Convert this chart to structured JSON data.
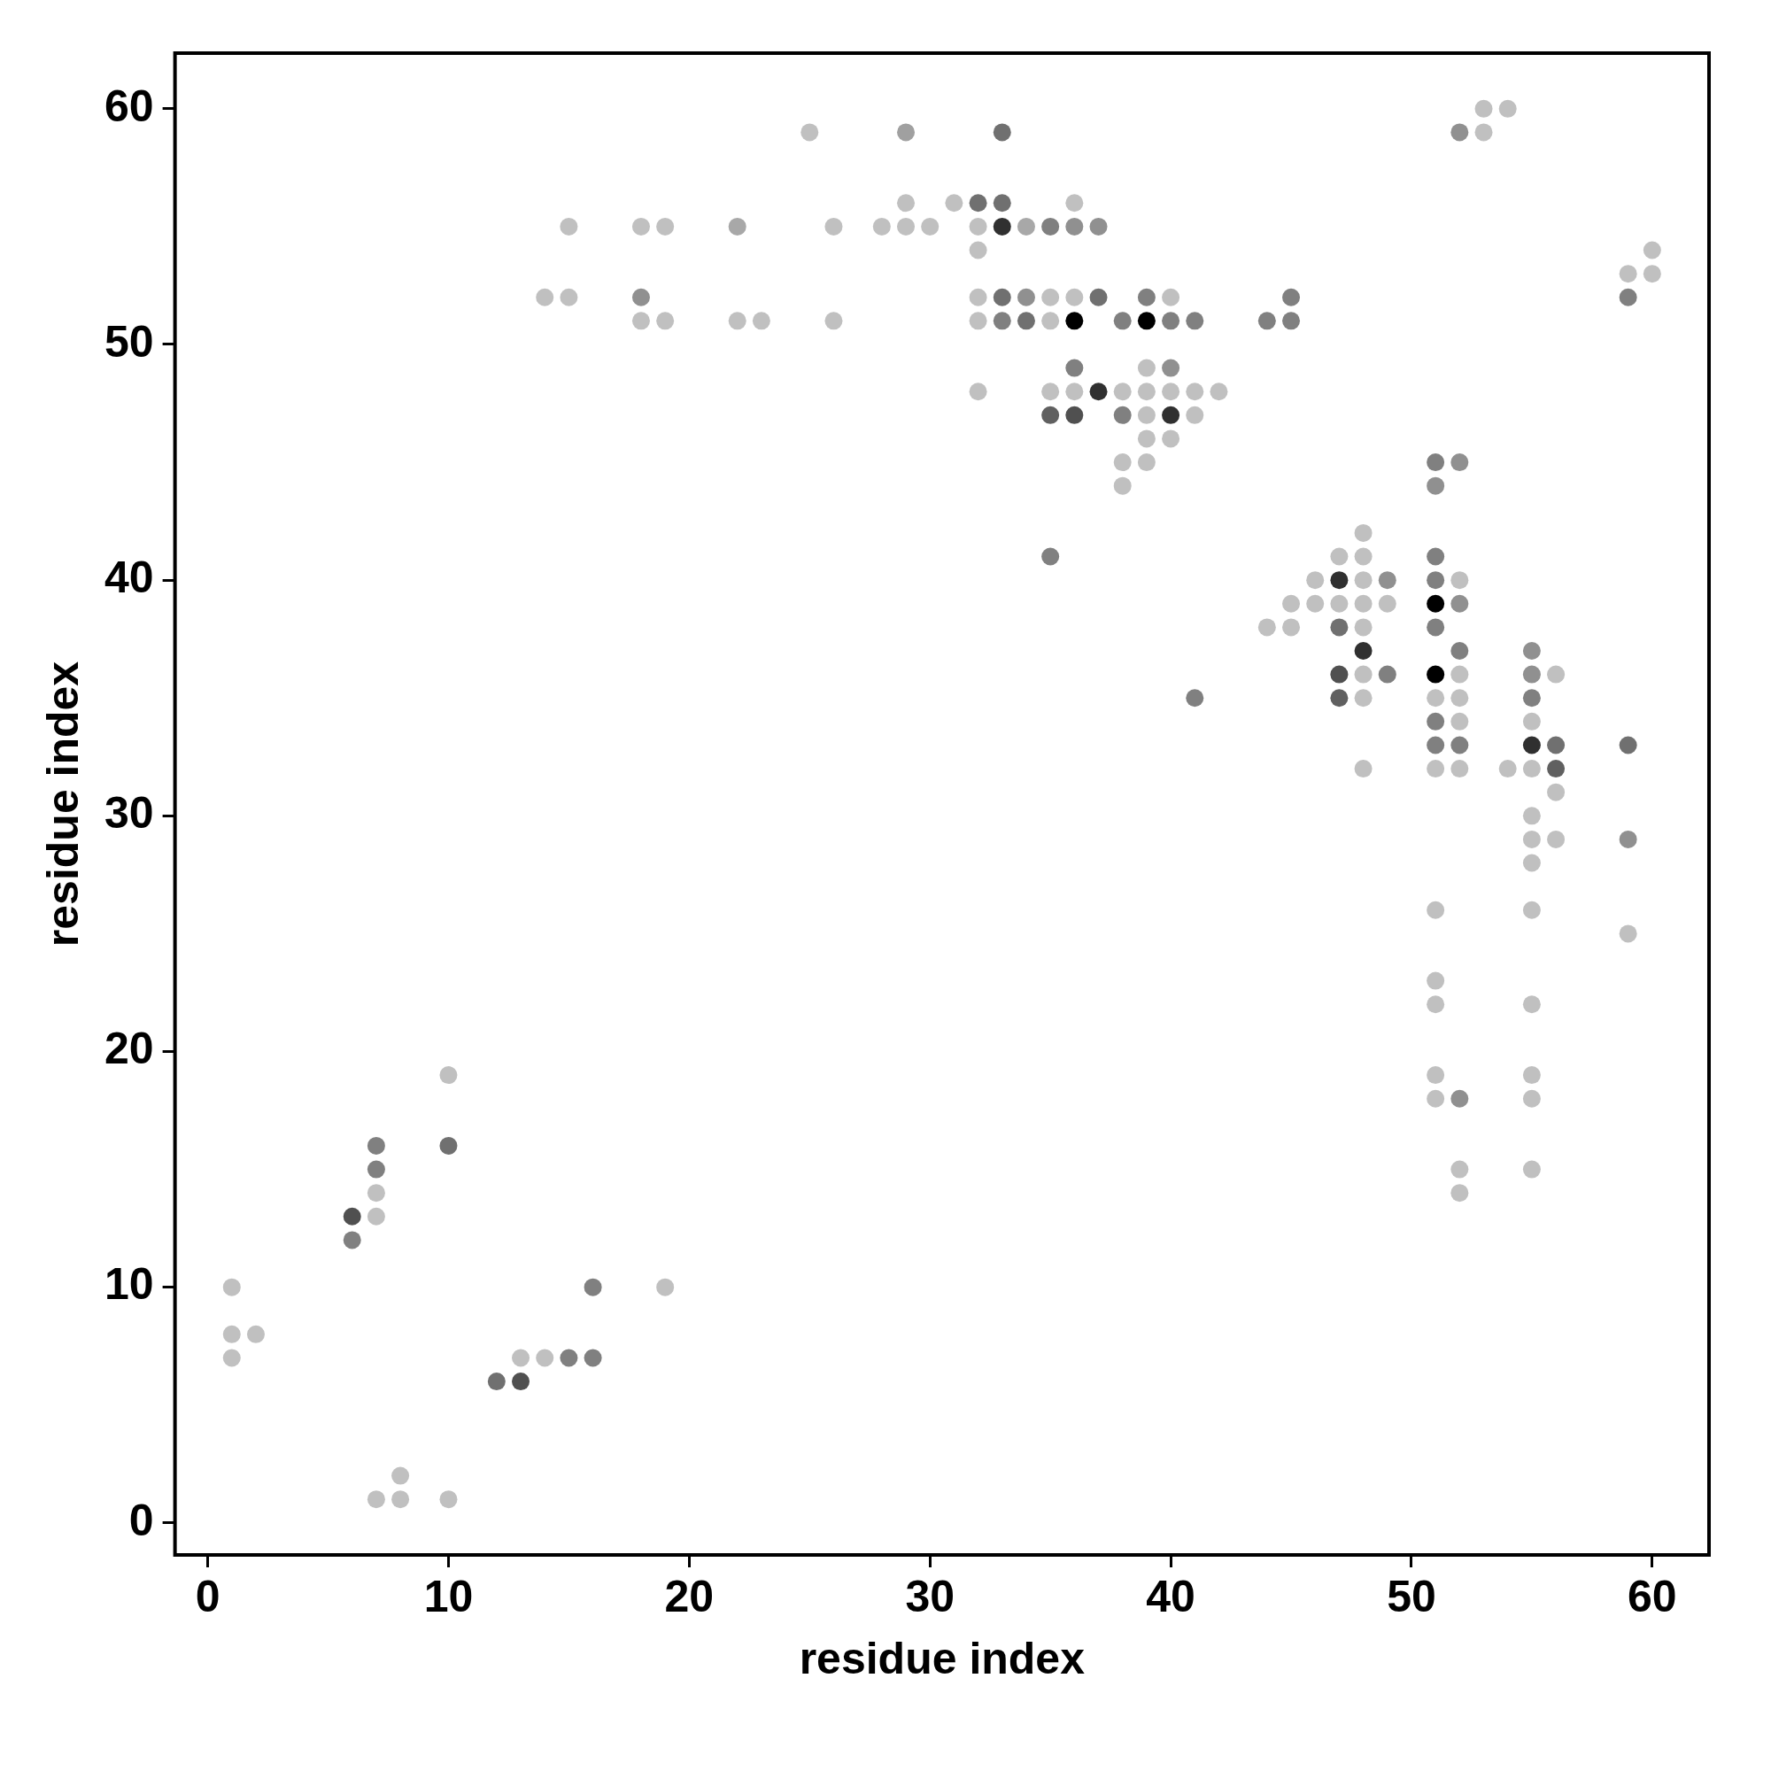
{
  "chart_data": {
    "type": "scatter",
    "xlabel": "residue index",
    "ylabel": "residue index",
    "xlim": [
      -1.36,
      62.36
    ],
    "ylim": [
      -1.36,
      62.36
    ],
    "xticks": [
      0,
      10,
      20,
      30,
      40,
      50,
      60
    ],
    "yticks": [
      0,
      10,
      20,
      30,
      40,
      50,
      60
    ],
    "grid": false,
    "legend": false,
    "marker": "circle",
    "series": [
      {
        "x": [
          1,
          1,
          2,
          1,
          7,
          7,
          7,
          7,
          6,
          6,
          10,
          10,
          7,
          8,
          8,
          10,
          12,
          13,
          13,
          14,
          15,
          16,
          16,
          19
        ],
        "values": [
          10,
          8,
          8,
          7,
          16,
          15,
          14,
          13,
          13,
          12,
          19,
          16,
          1,
          2,
          1,
          1,
          6,
          6,
          7,
          7,
          7,
          7,
          10,
          10
        ],
        "colors": [
          "#c0c0c0",
          "#c0c0c0",
          "#c0c0c0",
          "#c0c0c0",
          "#808080",
          "#808080",
          "#c0c0c0",
          "#c0c0c0",
          "#505050",
          "#808080",
          "#c0c0c0",
          "#707070",
          "#c0c0c0",
          "#c0c0c0",
          "#c0c0c0",
          "#c0c0c0",
          "#707070",
          "#505050",
          "#c0c0c0",
          "#c0c0c0",
          "#808080",
          "#808080",
          "#808080",
          "#c0c0c0"
        ]
      },
      {
        "x": [
          25,
          29,
          33,
          29,
          31,
          32,
          33,
          36,
          15,
          18,
          19,
          22,
          26,
          28,
          29,
          30,
          32,
          33,
          34,
          35,
          36,
          37,
          32,
          14,
          15,
          18,
          32,
          33,
          34,
          35,
          36,
          37,
          39,
          40,
          45,
          18,
          19,
          22,
          23,
          26,
          32,
          33,
          34,
          35,
          36,
          38,
          39,
          40,
          41,
          44,
          45
        ],
        "values": [
          59,
          59,
          59,
          56,
          56,
          56,
          56,
          56,
          55,
          55,
          55,
          55,
          55,
          55,
          55,
          55,
          55,
          55,
          55,
          55,
          55,
          55,
          54,
          52,
          52,
          52,
          52,
          52,
          52,
          52,
          52,
          52,
          52,
          52,
          52,
          51,
          51,
          51,
          51,
          51,
          51,
          51,
          51,
          51,
          51,
          51,
          51,
          51,
          51,
          51,
          51
        ],
        "colors": [
          "#c0c0c0",
          "#a0a0a0",
          "#707070",
          "#c0c0c0",
          "#c0c0c0",
          "#707070",
          "#707070",
          "#c0c0c0",
          "#c0c0c0",
          "#c0c0c0",
          "#c0c0c0",
          "#a8a8a8",
          "#c0c0c0",
          "#c0c0c0",
          "#c0c0c0",
          "#c0c0c0",
          "#c0c0c0",
          "#303030",
          "#a8a8a8",
          "#808080",
          "#909090",
          "#909090",
          "#c0c0c0",
          "#c0c0c0",
          "#c0c0c0",
          "#909090",
          "#c0c0c0",
          "#707070",
          "#909090",
          "#c0c0c0",
          "#c0c0c0",
          "#707070",
          "#808080",
          "#c0c0c0",
          "#808080",
          "#c0c0c0",
          "#c0c0c0",
          "#c0c0c0",
          "#c0c0c0",
          "#c0c0c0",
          "#c0c0c0",
          "#808080",
          "#707070",
          "#c0c0c0",
          "#000000",
          "#808080",
          "#000000",
          "#808080",
          "#808080",
          "#808080",
          "#808080"
        ]
      },
      {
        "x": [
          36,
          39,
          40,
          32,
          35,
          36,
          37,
          38,
          39,
          40,
          41,
          42,
          35,
          36,
          38,
          39,
          40,
          41,
          39,
          40,
          38,
          39,
          38,
          35,
          41
        ],
        "values": [
          49,
          49,
          49,
          48,
          48,
          48,
          48,
          48,
          48,
          48,
          48,
          48,
          47,
          47,
          47,
          47,
          47,
          47,
          46,
          46,
          45,
          45,
          44,
          41,
          35
        ],
        "colors": [
          "#808080",
          "#c0c0c0",
          "#909090",
          "#c0c0c0",
          "#c0c0c0",
          "#c0c0c0",
          "#303030",
          "#c0c0c0",
          "#c0c0c0",
          "#c0c0c0",
          "#c0c0c0",
          "#c0c0c0",
          "#606060",
          "#505050",
          "#808080",
          "#c0c0c0",
          "#303030",
          "#c0c0c0",
          "#c0c0c0",
          "#c0c0c0",
          "#c0c0c0",
          "#c0c0c0",
          "#c0c0c0",
          "#808080",
          "#808080"
        ]
      },
      {
        "x": [
          51,
          52,
          51,
          48,
          47,
          48,
          51,
          46,
          47,
          48,
          49,
          51,
          52,
          45,
          46,
          47,
          48,
          49,
          51,
          52,
          44,
          45,
          47,
          48,
          51,
          48,
          52,
          55,
          47,
          48,
          49,
          51,
          52,
          55,
          56,
          47,
          48,
          51,
          52,
          55,
          51,
          52,
          55,
          51,
          52,
          55,
          56,
          59,
          48,
          51,
          52,
          54,
          55,
          56
        ],
        "values": [
          45,
          45,
          44,
          42,
          41,
          41,
          41,
          40,
          40,
          40,
          40,
          40,
          40,
          39,
          39,
          39,
          39,
          39,
          39,
          39,
          38,
          38,
          38,
          38,
          38,
          37,
          37,
          37,
          36,
          36,
          36,
          36,
          36,
          36,
          36,
          35,
          35,
          35,
          35,
          35,
          34,
          34,
          34,
          33,
          33,
          33,
          33,
          33,
          32,
          32,
          32,
          32,
          32,
          32
        ],
        "colors": [
          "#808080",
          "#909090",
          "#909090",
          "#c0c0c0",
          "#c0c0c0",
          "#c0c0c0",
          "#808080",
          "#c0c0c0",
          "#303030",
          "#c0c0c0",
          "#909090",
          "#808080",
          "#c0c0c0",
          "#c0c0c0",
          "#c0c0c0",
          "#c0c0c0",
          "#c0c0c0",
          "#c0c0c0",
          "#000000",
          "#909090",
          "#c0c0c0",
          "#c0c0c0",
          "#707070",
          "#c0c0c0",
          "#808080",
          "#303030",
          "#808080",
          "#909090",
          "#505050",
          "#c0c0c0",
          "#808080",
          "#000000",
          "#c0c0c0",
          "#909090",
          "#c0c0c0",
          "#606060",
          "#c0c0c0",
          "#c0c0c0",
          "#c0c0c0",
          "#808080",
          "#808080",
          "#c0c0c0",
          "#c0c0c0",
          "#808080",
          "#808080",
          "#303030",
          "#707070",
          "#707070",
          "#c0c0c0",
          "#c0c0c0",
          "#c0c0c0",
          "#c0c0c0",
          "#c0c0c0",
          "#606060"
        ]
      },
      {
        "x": [
          56,
          55,
          55,
          56,
          59,
          55,
          51,
          55,
          59,
          51,
          51,
          55,
          51,
          55,
          51,
          52,
          55,
          52,
          55,
          52,
          52,
          53,
          53,
          54,
          60,
          59,
          60,
          59
        ],
        "values": [
          31,
          30,
          29,
          29,
          29,
          28,
          26,
          26,
          25,
          23,
          22,
          22,
          19,
          19,
          18,
          18,
          18,
          15,
          15,
          14,
          59,
          59,
          60,
          60,
          54,
          53,
          53,
          52
        ],
        "colors": [
          "#c0c0c0",
          "#c0c0c0",
          "#c0c0c0",
          "#c0c0c0",
          "#909090",
          "#c0c0c0",
          "#c0c0c0",
          "#c0c0c0",
          "#c0c0c0",
          "#c0c0c0",
          "#c0c0c0",
          "#c0c0c0",
          "#c0c0c0",
          "#c0c0c0",
          "#c0c0c0",
          "#909090",
          "#c0c0c0",
          "#c0c0c0",
          "#c0c0c0",
          "#c0c0c0",
          "#909090",
          "#c0c0c0",
          "#c0c0c0",
          "#c0c0c0",
          "#c0c0c0",
          "#c0c0c0",
          "#c0c0c0",
          "#808080"
        ]
      }
    ]
  }
}
